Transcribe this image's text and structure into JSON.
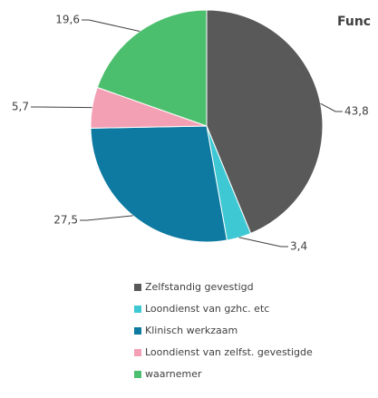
{
  "chart_data": {
    "type": "pie",
    "title": "Func",
    "categories": [
      "Zelfstandig gevestigd",
      "Loondienst van gzhc. etc",
      "Klinisch werkzaam",
      "Loondienst van zelfst. gevestigde",
      "waarnemer"
    ],
    "values": [
      43.8,
      3.4,
      27.5,
      5.7,
      19.6
    ],
    "value_labels": [
      "43,8",
      "3,4",
      "27,5",
      "5,7",
      "19,6"
    ],
    "colors": [
      "#595959",
      "#3ec8d4",
      "#0e7aa1",
      "#f4a0b4",
      "#4cbf6e"
    ],
    "legend": "bottom"
  }
}
